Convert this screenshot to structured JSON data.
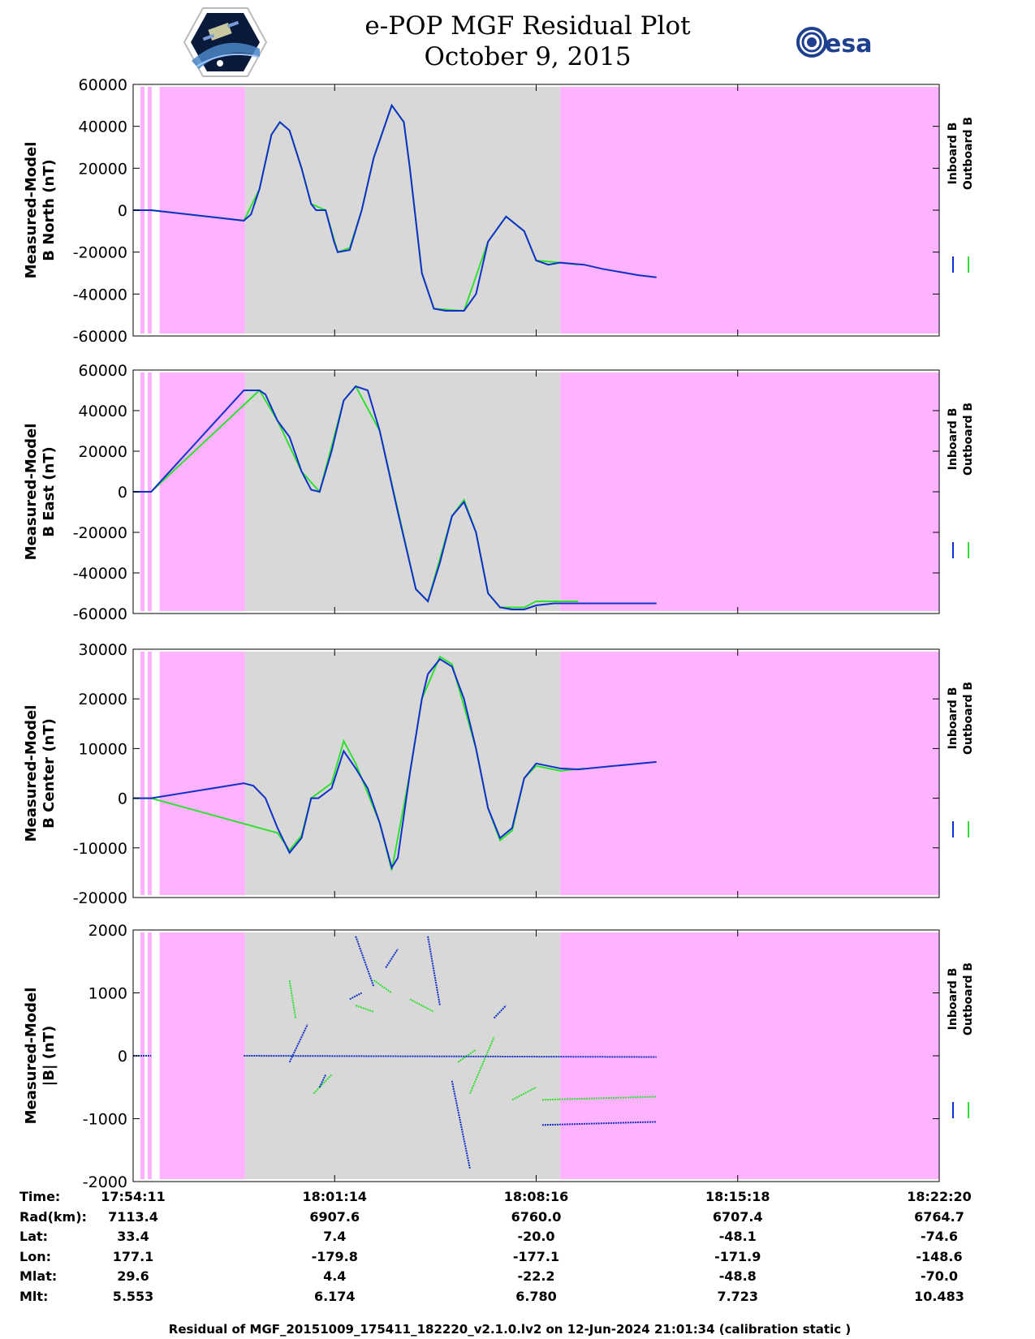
{
  "title": "e-POP MGF Residual Plot",
  "date": "October 9, 2015",
  "logos": {
    "left": "cassiope-mission-logo",
    "right": "esa"
  },
  "colors": {
    "inboard": "#1030c8",
    "outboard": "#30e030",
    "no_data": "#ffb3ff",
    "data": "#d8d8d8"
  },
  "chart_data": [
    {
      "type": "line",
      "ylabel": [
        "Measured-Model",
        "B North (nT)"
      ],
      "ylim": [
        -60000,
        60000
      ],
      "yticks": [
        60000,
        40000,
        20000,
        0,
        -20000,
        -40000,
        -60000
      ],
      "legend": [
        "Inboard B",
        "Outboard B"
      ],
      "series": [
        {
          "name": "Inboard B",
          "x": [
            0.0,
            1.5,
            9.2,
            9.8,
            10.5,
            11.5,
            12.2,
            13.0,
            14.0,
            14.8,
            15.2,
            16.0,
            16.7,
            17.0,
            18.0,
            19.0,
            20.0,
            21.5,
            22.5,
            23.0,
            24.0,
            25.0,
            26.0,
            27.5,
            28.5,
            29.5,
            31.0,
            32.5,
            33.5,
            34.5,
            35.5,
            37.5,
            39.0,
            42.0,
            43.5
          ],
          "values": [
            0,
            0,
            -5000,
            -2000,
            10000,
            36000,
            42000,
            38000,
            20000,
            3000,
            0,
            0,
            -15000,
            -20000,
            -19000,
            0,
            25000,
            50000,
            42000,
            20000,
            -30000,
            -47000,
            -48000,
            -48000,
            -40000,
            -15000,
            -3000,
            -10000,
            -24000,
            -26000,
            -25000,
            -26000,
            -28000,
            -31000,
            -32000
          ]
        },
        {
          "name": "Outboard B",
          "x": [
            0.0,
            1.5,
            9.2,
            10.5,
            11.5,
            12.2,
            13.0,
            14.0,
            14.8,
            16.0,
            17.0,
            18.0,
            19.0,
            20.0,
            21.5,
            22.5,
            23.0,
            24.0,
            25.0,
            27.5,
            29.5,
            31.0,
            32.5,
            33.5,
            35.5,
            37.0
          ],
          "values": [
            0,
            0,
            -5000,
            10000,
            36000,
            42000,
            38000,
            20000,
            3000,
            0,
            -20000,
            -18000,
            0,
            25000,
            50000,
            42000,
            20000,
            -30000,
            -47000,
            -48000,
            -15000,
            -3000,
            -10000,
            -24000,
            -25000,
            -26000
          ]
        }
      ]
    },
    {
      "type": "line",
      "ylabel": [
        "Measured-Model",
        "B East (nT)"
      ],
      "ylim": [
        -60000,
        60000
      ],
      "yticks": [
        60000,
        40000,
        20000,
        0,
        -20000,
        -40000,
        -60000
      ],
      "legend": [
        "Inboard B",
        "Outboard B"
      ],
      "series": [
        {
          "name": "Inboard B",
          "x": [
            0.0,
            1.5,
            9.2,
            10.5,
            11.0,
            12.0,
            13.0,
            14.0,
            14.8,
            15.5,
            16.5,
            17.5,
            18.5,
            19.5,
            20.5,
            22.0,
            23.5,
            24.5,
            25.5,
            26.5,
            27.5,
            28.5,
            29.5,
            30.5,
            31.5,
            32.5,
            33.5,
            35.0,
            36.0,
            37.5,
            40.0,
            43.5
          ],
          "values": [
            0,
            0,
            50000,
            50000,
            48000,
            35000,
            27000,
            10000,
            1000,
            0,
            20000,
            45000,
            52000,
            50000,
            30000,
            -10000,
            -48000,
            -54000,
            -35000,
            -12000,
            -5000,
            -20000,
            -50000,
            -57000,
            -58000,
            -58000,
            -56000,
            -55000,
            -55000,
            -55000,
            -55000,
            -55000
          ]
        },
        {
          "name": "Outboard B",
          "x": [
            0.0,
            1.5,
            10.5,
            12.0,
            14.0,
            15.5,
            17.5,
            18.5,
            20.5,
            23.5,
            24.5,
            26.5,
            27.5,
            28.5,
            29.5,
            30.5,
            32.5,
            33.5,
            35.0,
            37.0
          ],
          "values": [
            0,
            0,
            50000,
            35000,
            10000,
            0,
            45000,
            52000,
            30000,
            -48000,
            -54000,
            -12000,
            -4000,
            -20000,
            -50000,
            -57000,
            -57000,
            -54000,
            -54000,
            -54000
          ]
        }
      ]
    },
    {
      "type": "line",
      "ylabel": [
        "Measured-Model",
        "B Center (nT)"
      ],
      "ylim": [
        -20000,
        30000
      ],
      "yticks": [
        30000,
        20000,
        10000,
        0,
        -10000,
        -20000
      ],
      "legend": [
        "Inboard B",
        "Outboard B"
      ],
      "series": [
        {
          "name": "Inboard B",
          "x": [
            0.0,
            1.5,
            9.2,
            10.0,
            11.0,
            12.0,
            13.0,
            14.0,
            14.8,
            15.4,
            16.5,
            17.5,
            18.5,
            19.5,
            20.5,
            21.5,
            22.0,
            23.0,
            24.0,
            24.5,
            25.5,
            26.5,
            27.5,
            28.5,
            29.5,
            30.5,
            31.5,
            32.5,
            33.5,
            34.5,
            35.5,
            37.0,
            40.0,
            43.5
          ],
          "values": [
            0,
            0,
            3000,
            2500,
            0,
            -6000,
            -11000,
            -8000,
            0,
            0,
            2000,
            9500,
            6000,
            2000,
            -5000,
            -14000,
            -12000,
            5000,
            20000,
            25000,
            28000,
            26500,
            20000,
            10000,
            -2000,
            -8000,
            -6000,
            4000,
            7000,
            6500,
            6000,
            5800,
            6500,
            7300
          ]
        },
        {
          "name": "Outboard B",
          "x": [
            0.0,
            1.5,
            12.0,
            13.0,
            14.0,
            14.8,
            16.5,
            17.5,
            18.5,
            20.5,
            21.5,
            23.0,
            24.0,
            25.5,
            26.5,
            28.5,
            29.5,
            30.5,
            31.5,
            32.5,
            33.5,
            35.5,
            37.5
          ],
          "values": [
            0,
            0,
            -7000,
            -10500,
            -7500,
            0,
            3000,
            11500,
            7000,
            -5000,
            -14500,
            5000,
            20000,
            28500,
            27000,
            10000,
            -2000,
            -8500,
            -6500,
            4000,
            6500,
            5500,
            6000
          ]
        }
      ]
    },
    {
      "type": "scatter",
      "ylabel": [
        "Measured-Model",
        "|B| (nT)"
      ],
      "ylim": [
        -2000,
        2000
      ],
      "yticks": [
        2000,
        1000,
        0,
        -1000,
        -2000
      ],
      "legend": [
        "Inboard B",
        "Outboard B"
      ],
      "series": [
        {
          "name": "Inboard B",
          "segments": [
            {
              "x": [
                0.0,
                1.5
              ],
              "values": [
                0,
                0
              ]
            },
            {
              "x": [
                9.2,
                43.5
              ],
              "values": [
                0,
                -20
              ]
            },
            {
              "x": [
                13.0,
                14.5
              ],
              "values": [
                -100,
                500
              ]
            },
            {
              "x": [
                15.5,
                16.0
              ],
              "values": [
                -500,
                -300
              ]
            },
            {
              "x": [
                18.0,
                19.0
              ],
              "values": [
                900,
                1000
              ]
            },
            {
              "x": [
                18.5,
                20.0
              ],
              "values": [
                1900,
                1100
              ]
            },
            {
              "x": [
                21.0,
                22.0
              ],
              "values": [
                1400,
                1700
              ]
            },
            {
              "x": [
                24.5,
                25.5
              ],
              "values": [
                1900,
                800
              ]
            },
            {
              "x": [
                26.5,
                28.0
              ],
              "values": [
                -400,
                -1800
              ]
            },
            {
              "x": [
                30.0,
                31.0
              ],
              "values": [
                600,
                800
              ]
            },
            {
              "x": [
                34.0,
                43.5
              ],
              "values": [
                -1100,
                -1050
              ]
            }
          ]
        },
        {
          "name": "Outboard B",
          "segments": [
            {
              "x": [
                0.0,
                1.5
              ],
              "values": [
                0,
                0
              ]
            },
            {
              "x": [
                13.0,
                13.5
              ],
              "values": [
                1200,
                600
              ]
            },
            {
              "x": [
                15.0,
                16.5
              ],
              "values": [
                -600,
                -300
              ]
            },
            {
              "x": [
                18.5,
                20.0
              ],
              "values": [
                800,
                700
              ]
            },
            {
              "x": [
                20.0,
                21.5
              ],
              "values": [
                1200,
                1000
              ]
            },
            {
              "x": [
                23.0,
                25.0
              ],
              "values": [
                900,
                700
              ]
            },
            {
              "x": [
                27.0,
                28.5
              ],
              "values": [
                -100,
                100
              ]
            },
            {
              "x": [
                28.0,
                30.0
              ],
              "values": [
                -600,
                300
              ]
            },
            {
              "x": [
                31.5,
                33.5
              ],
              "values": [
                -700,
                -500
              ]
            },
            {
              "x": [
                34.0,
                43.5
              ],
              "values": [
                -700,
                -650
              ]
            }
          ]
        }
      ]
    }
  ],
  "time_axis": {
    "xlim": [
      0,
      67
    ],
    "nodata_stripes": [
      [
        0.6,
        0.95
      ],
      [
        1.2,
        1.55
      ],
      [
        2.2,
        9.3
      ],
      [
        35.5,
        67
      ]
    ],
    "data_region": [
      9.3,
      35.5
    ],
    "tick_x": [
      0,
      16.75,
      33.5,
      50.25,
      67
    ]
  },
  "ephemeris": {
    "labels": [
      "Time:",
      "Rad(km):",
      "Lat:",
      "Lon:",
      "Mlat:",
      "Mlt:"
    ],
    "columns": [
      [
        "17:54:11",
        "7113.4",
        "33.4",
        "177.1",
        "29.6",
        "5.553"
      ],
      [
        "18:01:14",
        "6907.6",
        "7.4",
        "-179.8",
        "4.4",
        "6.174"
      ],
      [
        "18:08:16",
        "6760.0",
        "-20.0",
        "-177.1",
        "-22.2",
        "6.780"
      ],
      [
        "18:15:18",
        "6707.4",
        "-48.1",
        "-171.9",
        "-48.8",
        "7.723"
      ],
      [
        "18:22:20",
        "6764.7",
        "-74.6",
        "-148.6",
        "-70.0",
        "10.483"
      ]
    ]
  },
  "footer": "Residual of MGF_20151009_175411_182220_v2.1.0.lv2 on 12-Jun-2024 21:01:34 (calibration static )"
}
